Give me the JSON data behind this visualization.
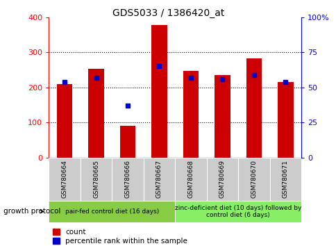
{
  "title": "GDS5033 / 1386420_at",
  "samples": [
    "GSM780664",
    "GSM780665",
    "GSM780666",
    "GSM780667",
    "GSM780668",
    "GSM780669",
    "GSM780670",
    "GSM780671"
  ],
  "counts": [
    210,
    253,
    90,
    378,
    247,
    236,
    282,
    215
  ],
  "percentile_ranks": [
    54,
    57,
    37,
    65,
    57,
    56,
    59,
    54
  ],
  "ylim_left": [
    0,
    400
  ],
  "ylim_right": [
    0,
    100
  ],
  "yticks_left": [
    0,
    100,
    200,
    300,
    400
  ],
  "yticks_right": [
    0,
    25,
    50,
    75,
    100
  ],
  "ytick_labels_right": [
    "0",
    "25",
    "50",
    "75",
    "100%"
  ],
  "bar_color": "#cc0000",
  "dot_color": "#0000cc",
  "group1_label": "pair-fed control diet (16 days)",
  "group2_label": "zinc-deficient diet (10 days) followed by\ncontrol diet (6 days)",
  "group1_bg": "#88cc44",
  "group2_bg": "#88ee66",
  "xticklabel_bg": "#cccccc",
  "growth_protocol_label": "growth protocol",
  "legend_count_label": "count",
  "legend_pct_label": "percentile rank within the sample",
  "title_fontsize": 10,
  "tick_fontsize": 8,
  "bar_width": 0.5
}
